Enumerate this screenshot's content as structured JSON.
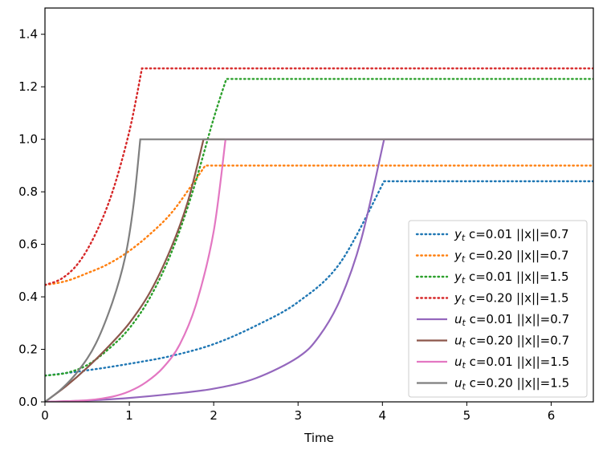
{
  "chart_data": {
    "type": "line",
    "title": "",
    "xlabel": "Time",
    "ylabel": "",
    "xlim": [
      0,
      6.5
    ],
    "ylim": [
      0,
      1.5
    ],
    "xticks": [
      0,
      1,
      2,
      3,
      4,
      5,
      6
    ],
    "yticks": [
      0.0,
      0.2,
      0.4,
      0.6,
      0.8,
      1.0,
      1.2,
      1.4
    ],
    "xtick_labels": [
      "0",
      "1",
      "2",
      "3",
      "4",
      "5",
      "6"
    ],
    "ytick_labels": [
      "0.0",
      "0.2",
      "0.4",
      "0.6",
      "0.8",
      "1.0",
      "1.2",
      "1.4"
    ],
    "grid": false,
    "legend_position": "lower-right",
    "series": [
      {
        "name": "y_t c=0.01 ||x||=0.7",
        "sym": "y",
        "label": "c=0.01 ||x||=0.7",
        "style": "dotted",
        "color": "#1f77b4",
        "x": [
          0,
          0.5,
          1.0,
          1.5,
          2.0,
          2.5,
          3.0,
          3.5,
          4.02,
          6.5
        ],
        "y": [
          0.1,
          0.12,
          0.145,
          0.175,
          0.22,
          0.29,
          0.38,
          0.53,
          0.84,
          0.84
        ]
      },
      {
        "name": "y_t c=0.20 ||x||=0.7",
        "sym": "y",
        "label": "c=0.20 ||x||=0.7",
        "style": "dotted",
        "color": "#ff7f0e",
        "x": [
          0,
          0.25,
          0.5,
          0.75,
          1.0,
          1.25,
          1.5,
          1.75,
          1.9,
          6.5
        ],
        "y": [
          0.445,
          0.46,
          0.49,
          0.525,
          0.575,
          0.64,
          0.72,
          0.83,
          0.9,
          0.9
        ]
      },
      {
        "name": "y_t c=0.01 ||x||=1.5",
        "sym": "y",
        "label": "c=0.01 ||x||=1.5",
        "style": "dotted",
        "color": "#2ca02c",
        "x": [
          0,
          0.25,
          0.5,
          0.75,
          1.0,
          1.25,
          1.5,
          1.75,
          2.0,
          2.15,
          6.5
        ],
        "y": [
          0.1,
          0.11,
          0.14,
          0.2,
          0.28,
          0.4,
          0.57,
          0.8,
          1.08,
          1.23,
          1.23
        ]
      },
      {
        "name": "y_t c=0.20 ||x||=1.5",
        "sym": "y",
        "label": "c=0.20 ||x||=1.5",
        "style": "dotted",
        "color": "#d62728",
        "x": [
          0,
          0.2,
          0.4,
          0.6,
          0.8,
          1.0,
          1.15,
          6.5
        ],
        "y": [
          0.445,
          0.47,
          0.53,
          0.64,
          0.8,
          1.03,
          1.27,
          1.27
        ]
      },
      {
        "name": "u_t c=0.01 ||x||=0.7",
        "sym": "u",
        "label": "c=0.01 ||x||=0.7",
        "style": "solid",
        "color": "#9467bd",
        "x": [
          0,
          0.5,
          1.0,
          1.5,
          2.0,
          2.5,
          3.0,
          3.25,
          3.5,
          3.75,
          4.02,
          6.5
        ],
        "y": [
          0,
          0.005,
          0.015,
          0.03,
          0.05,
          0.09,
          0.17,
          0.25,
          0.39,
          0.62,
          1.0,
          1.0
        ]
      },
      {
        "name": "u_t c=0.20 ||x||=0.7",
        "sym": "u",
        "label": "c=0.20 ||x||=0.7",
        "style": "solid",
        "color": "#8c564b",
        "x": [
          0,
          0.25,
          0.5,
          0.75,
          1.0,
          1.25,
          1.5,
          1.7,
          1.88,
          6.5
        ],
        "y": [
          0,
          0.06,
          0.13,
          0.21,
          0.3,
          0.42,
          0.59,
          0.77,
          1.0,
          1.0
        ]
      },
      {
        "name": "u_t c=0.01 ||x||=1.5",
        "sym": "u",
        "label": "c=0.01 ||x||=1.5",
        "style": "solid",
        "color": "#e377c2",
        "x": [
          0,
          0.5,
          0.8,
          1.0,
          1.2,
          1.4,
          1.6,
          1.8,
          2.0,
          2.14,
          6.5
        ],
        "y": [
          0,
          0.006,
          0.02,
          0.04,
          0.075,
          0.13,
          0.22,
          0.38,
          0.65,
          1.0,
          1.0
        ]
      },
      {
        "name": "u_t c=0.20 ||x||=1.5",
        "sym": "u",
        "label": "c=0.20 ||x||=1.5",
        "style": "solid",
        "color": "#7f7f7f",
        "x": [
          0,
          0.2,
          0.4,
          0.6,
          0.8,
          0.95,
          1.05,
          1.13,
          6.5
        ],
        "y": [
          0,
          0.05,
          0.12,
          0.22,
          0.38,
          0.55,
          0.75,
          1.0,
          1.0
        ]
      }
    ]
  }
}
